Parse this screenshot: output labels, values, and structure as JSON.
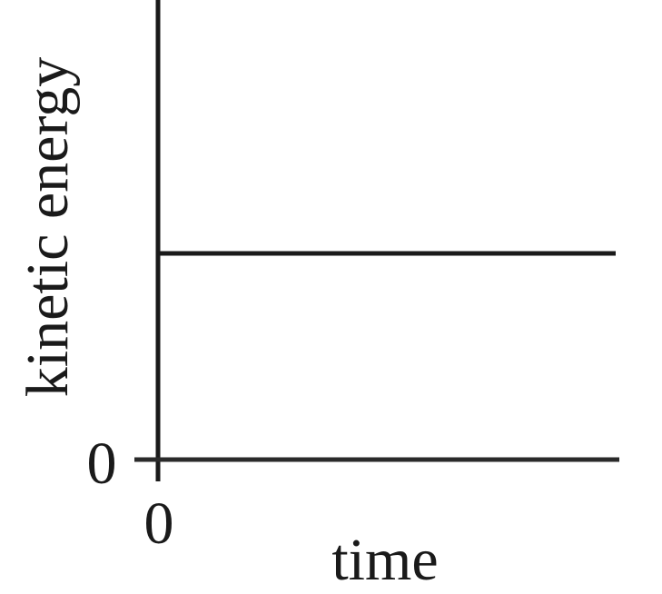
{
  "chart_data": {
    "type": "line",
    "title": "",
    "xlabel": "time",
    "ylabel": "kinetic energy",
    "x_ticks": [
      "0"
    ],
    "y_ticks": [
      "0"
    ],
    "xlim": [
      0,
      10
    ],
    "ylim": [
      0,
      10
    ],
    "series": [
      {
        "name": "kinetic energy",
        "x": [
          0,
          10
        ],
        "y": [
          5,
          5
        ]
      }
    ],
    "colors": {
      "line": "#1a1a1a",
      "axis": "#1a1a1a",
      "text": "#1a1a1a"
    }
  }
}
